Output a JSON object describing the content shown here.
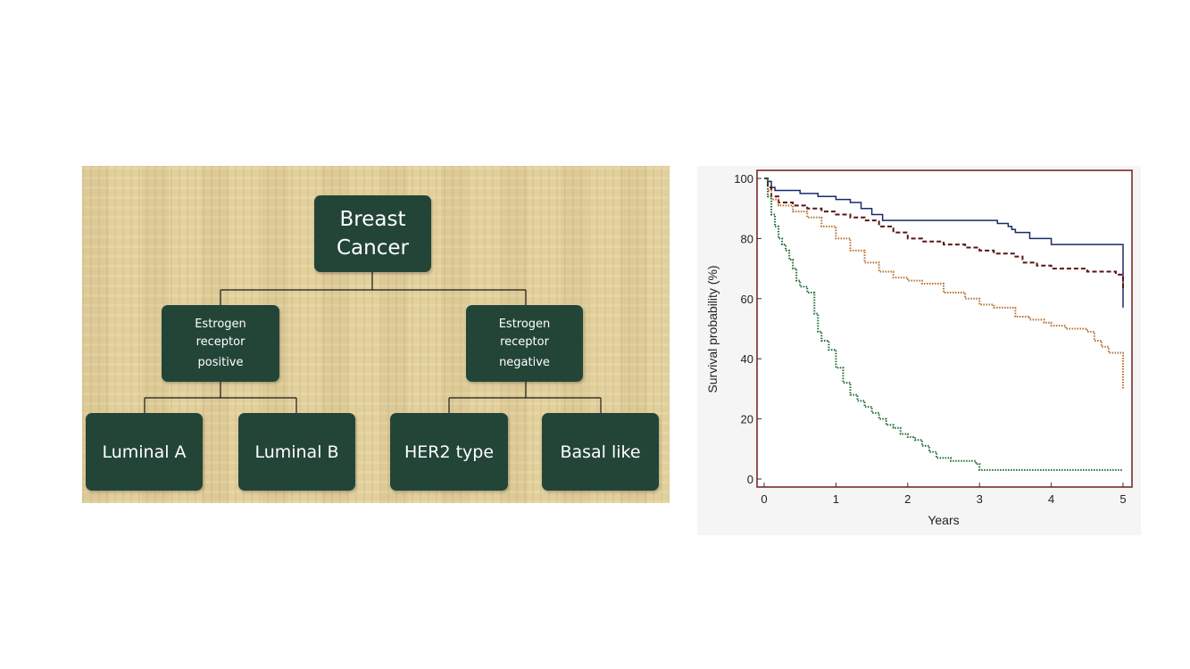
{
  "tree": {
    "root": "Breast Cancer",
    "er_positive": [
      "Estrogen",
      "receptor",
      "positive"
    ],
    "er_negative": [
      "Estrogen",
      "receptor",
      "negative"
    ],
    "leaves": [
      "Luminal A",
      "Luminal B",
      "HER2 type",
      "Basal like"
    ],
    "node_color": "#234538",
    "background_color": "#e2d09c"
  },
  "chart_data": {
    "type": "line",
    "title": "",
    "xlabel": "Years",
    "ylabel": "Survival probability (%)",
    "xlim": [
      0,
      5
    ],
    "ylim": [
      0,
      100
    ],
    "xticks": [
      0,
      1,
      2,
      3,
      4,
      5
    ],
    "yticks": [
      0,
      20,
      40,
      60,
      80,
      100
    ],
    "grid": false,
    "legend": "none",
    "series": [
      {
        "color": "#1a2a6c",
        "style": "solid",
        "x": [
          0,
          0.05,
          0.1,
          0.15,
          0.3,
          0.5,
          0.75,
          1.0,
          1.2,
          1.35,
          1.5,
          1.65,
          2.0,
          2.5,
          3.0,
          3.25,
          3.4,
          3.45,
          3.5,
          3.7,
          3.9,
          4.0,
          4.5,
          4.95,
          5.0,
          5.0
        ],
        "y": [
          100,
          99,
          97,
          96,
          96,
          95,
          94,
          93,
          92,
          90,
          88,
          86,
          86,
          86,
          86,
          85,
          84,
          83,
          82,
          80,
          80,
          78,
          78,
          78,
          78,
          57
        ]
      },
      {
        "color": "#5a1414",
        "style": "dashed",
        "x": [
          0,
          0.05,
          0.1,
          0.2,
          0.4,
          0.6,
          0.8,
          1.0,
          1.2,
          1.4,
          1.6,
          1.8,
          2.0,
          2.2,
          2.5,
          2.8,
          3.0,
          3.2,
          3.5,
          3.6,
          3.8,
          4.0,
          4.5,
          4.8,
          4.9,
          5.0,
          5.0
        ],
        "y": [
          100,
          97,
          94,
          92,
          91,
          90,
          89,
          88,
          87,
          86,
          84,
          82,
          80,
          79,
          78,
          77,
          76,
          75,
          74,
          72,
          71,
          70,
          69,
          69,
          68,
          66,
          63
        ]
      },
      {
        "color": "#b8702a",
        "style": "dotted",
        "x": [
          0,
          0.05,
          0.1,
          0.2,
          0.4,
          0.6,
          0.8,
          1.0,
          1.2,
          1.4,
          1.6,
          1.8,
          2.0,
          2.2,
          2.5,
          2.8,
          3.0,
          3.2,
          3.5,
          3.7,
          3.9,
          4.0,
          4.2,
          4.4,
          4.5,
          4.6,
          4.7,
          4.8,
          5.0,
          5.0
        ],
        "y": [
          100,
          96,
          93,
          91,
          89,
          87,
          84,
          80,
          76,
          72,
          69,
          67,
          66,
          65,
          62,
          60,
          58,
          57,
          54,
          53,
          52,
          51,
          50,
          50,
          49,
          46,
          44,
          42,
          41,
          30
        ]
      },
      {
        "color": "#1e6b32",
        "style": "dotted",
        "x": [
          0,
          0.05,
          0.1,
          0.15,
          0.2,
          0.25,
          0.3,
          0.35,
          0.4,
          0.45,
          0.5,
          0.6,
          0.7,
          0.75,
          0.8,
          0.9,
          1.0,
          1.1,
          1.2,
          1.3,
          1.4,
          1.5,
          1.6,
          1.7,
          1.8,
          1.9,
          2.0,
          2.1,
          2.2,
          2.3,
          2.4,
          2.6,
          2.8,
          2.95,
          3.0,
          3.5,
          4.0,
          5.0
        ],
        "y": [
          100,
          94,
          88,
          84,
          80,
          78,
          76,
          73,
          70,
          66,
          64,
          62,
          55,
          49,
          46,
          43,
          37,
          32,
          28,
          26,
          24,
          22,
          20,
          18,
          17,
          15,
          14,
          13,
          11,
          9,
          7,
          6,
          6,
          5,
          3,
          3,
          3,
          3
        ]
      }
    ]
  }
}
